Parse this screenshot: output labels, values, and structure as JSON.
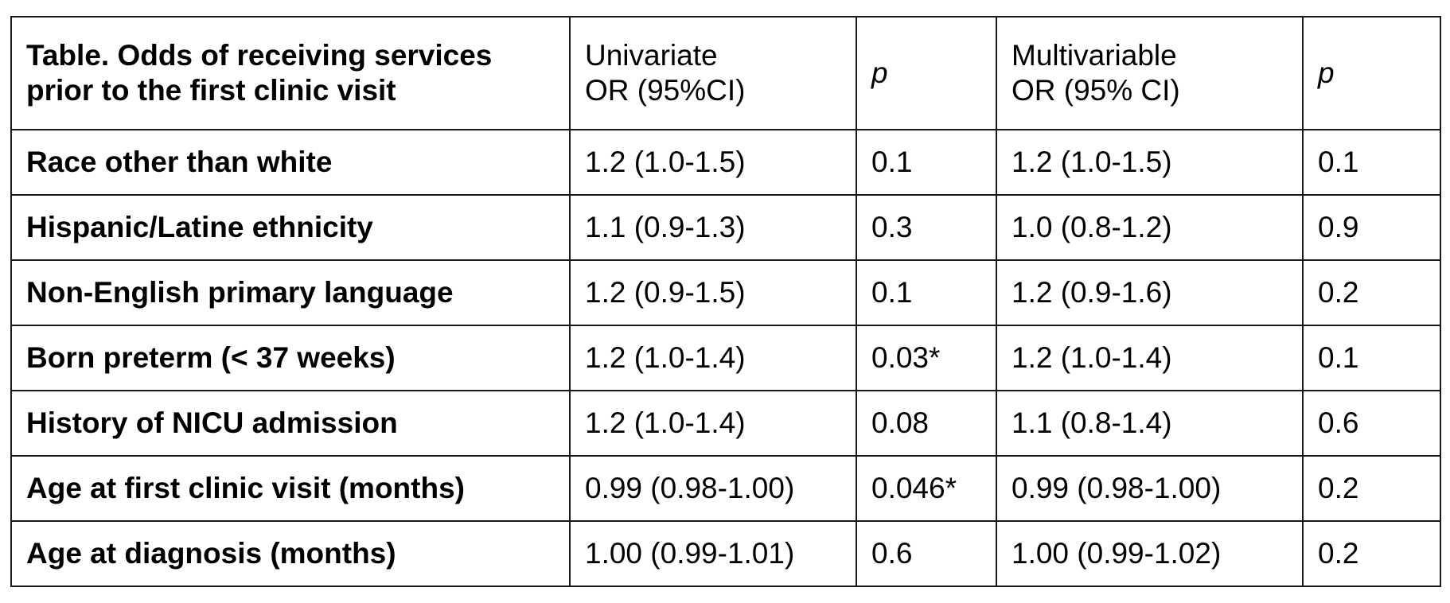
{
  "table": {
    "header": {
      "title_line1": "Table. Odds of receiving services",
      "title_line2": "prior to the first clinic visit",
      "univariate_line1": "Univariate",
      "univariate_line2": "OR (95%CI)",
      "p1": "p",
      "multivariable_line1": "Multivariable",
      "multivariable_line2": "OR (95% CI)",
      "p2": "p"
    },
    "rows": [
      {
        "label": "Race other than white",
        "uni_or": "1.2 (1.0-1.5)",
        "uni_p": "0.1",
        "multi_or": "1.2 (1.0-1.5)",
        "multi_p": "0.1"
      },
      {
        "label": "Hispanic/Latine ethnicity",
        "uni_or": "1.1 (0.9-1.3)",
        "uni_p": "0.3",
        "multi_or": "1.0 (0.8-1.2)",
        "multi_p": "0.9"
      },
      {
        "label": "Non-English primary language",
        "uni_or": "1.2 (0.9-1.5)",
        "uni_p": "0.1",
        "multi_or": "1.2 (0.9-1.6)",
        "multi_p": "0.2"
      },
      {
        "label": "Born preterm (< 37 weeks)",
        "uni_or": "1.2 (1.0-1.4)",
        "uni_p": "0.03*",
        "multi_or": "1.2 (1.0-1.4)",
        "multi_p": "0.1"
      },
      {
        "label": "History of NICU admission",
        "uni_or": "1.2 (1.0-1.4)",
        "uni_p": "0.08",
        "multi_or": "1.1 (0.8-1.4)",
        "multi_p": "0.6"
      },
      {
        "label": "Age at first clinic visit (months)",
        "uni_or": "0.99 (0.98-1.00)",
        "uni_p": "0.046*",
        "multi_or": "0.99 (0.98-1.00)",
        "multi_p": "0.2"
      },
      {
        "label": "Age at diagnosis (months)",
        "uni_or": "1.00 (0.99-1.01)",
        "uni_p": "0.6",
        "multi_or": "1.00 (0.99-1.02)",
        "multi_p": "0.2"
      }
    ]
  }
}
